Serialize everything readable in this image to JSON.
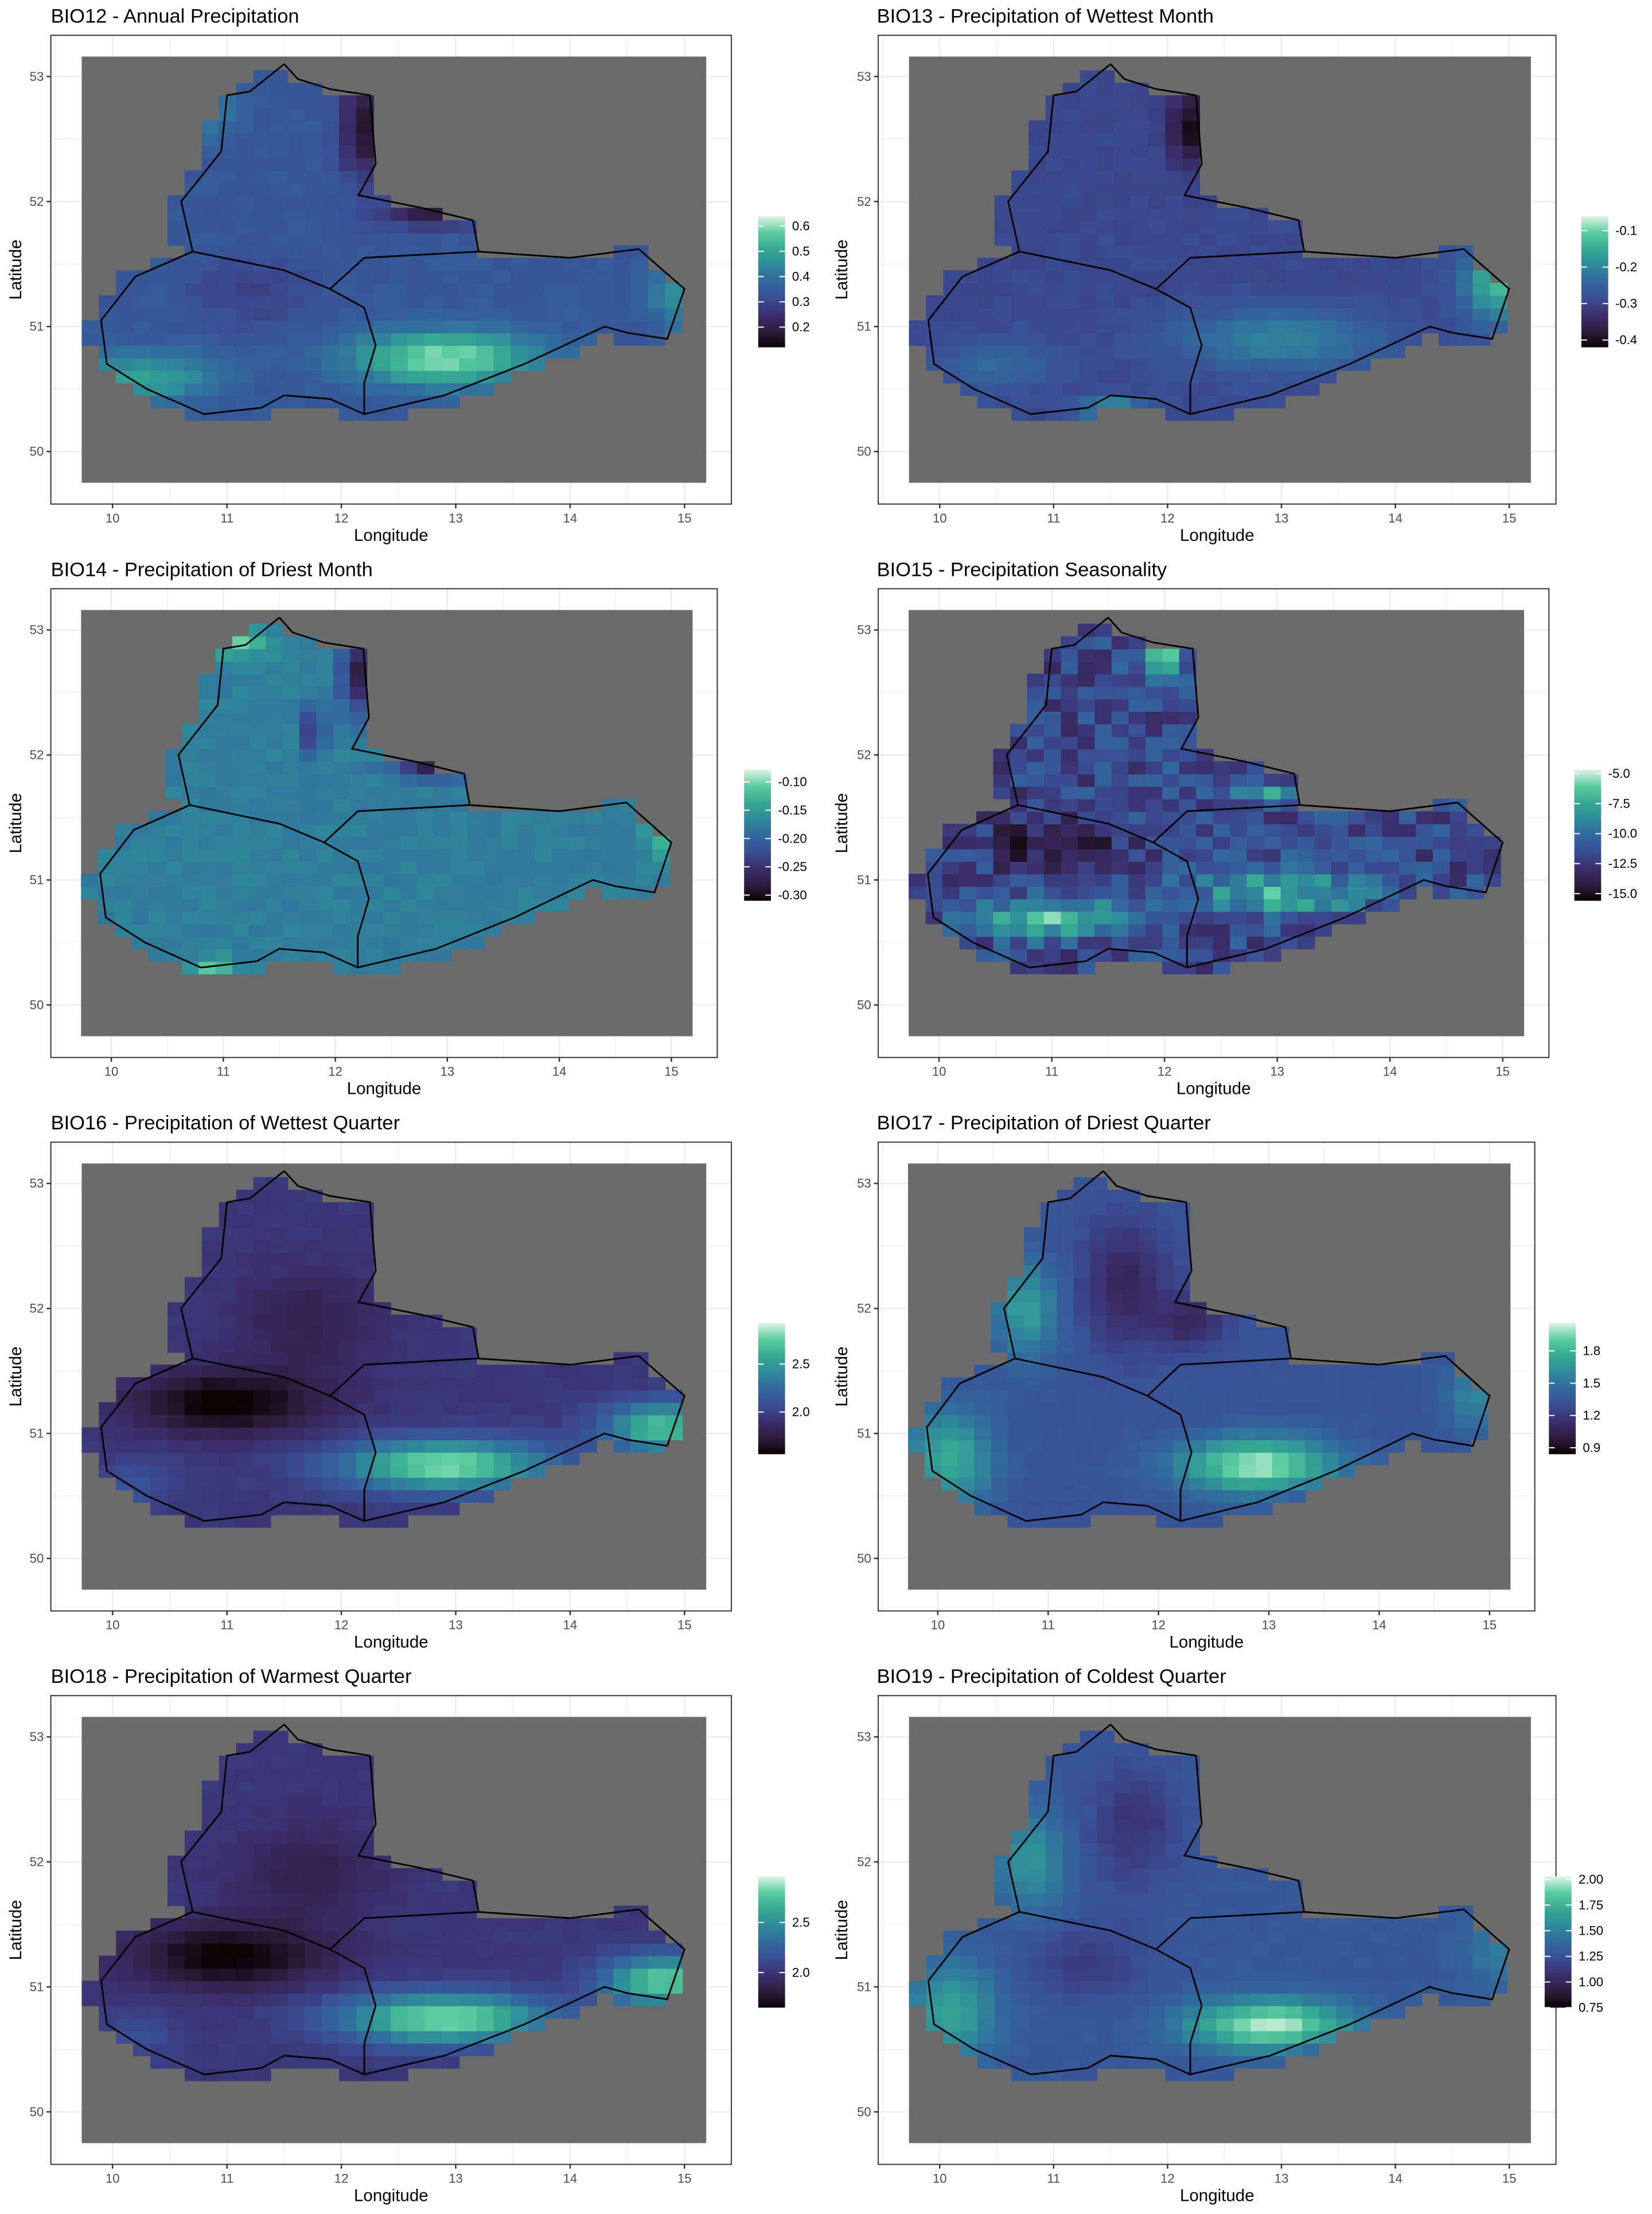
{
  "chart_data": [
    {
      "type": "heatmap",
      "title": "BIO12 - Annual Precipitation",
      "xlabel": "Longitude",
      "ylabel": "Latitude",
      "xticks": [
        "10",
        "11",
        "12",
        "13",
        "14",
        "15"
      ],
      "yticks": [
        "50",
        "51",
        "52",
        "53"
      ],
      "xlim": [
        9.46,
        15.41
      ],
      "ylim": [
        49.58,
        53.33
      ],
      "legend_ticks": [
        "0.2",
        "0.3",
        "0.4",
        "0.5",
        "0.6"
      ],
      "legend_tick_values": [
        0.2,
        0.3,
        0.4,
        0.5,
        0.6
      ],
      "value_range": [
        0.12,
        0.64
      ],
      "legend_position": "right"
    },
    {
      "type": "heatmap",
      "title": "BIO13 - Precipitation of Wettest Month",
      "xlabel": "Longitude",
      "ylabel": "Latitude",
      "xticks": [
        "10",
        "11",
        "12",
        "13",
        "14",
        "15"
      ],
      "yticks": [
        "50",
        "51",
        "52",
        "53"
      ],
      "xlim": [
        9.46,
        15.41
      ],
      "ylim": [
        49.58,
        53.33
      ],
      "legend_ticks": [
        "-0.4",
        "-0.3",
        "-0.2",
        "-0.1"
      ],
      "legend_tick_values": [
        -0.4,
        -0.3,
        -0.2,
        -0.1
      ],
      "value_range": [
        -0.42,
        -0.06
      ],
      "legend_position": "right"
    },
    {
      "type": "heatmap",
      "title": "BIO14 - Precipitation of Driest Month",
      "xlabel": "Longitude",
      "ylabel": "Latitude",
      "xticks": [
        "10",
        "11",
        "12",
        "13",
        "14",
        "15"
      ],
      "yticks": [
        "50",
        "51",
        "52",
        "53"
      ],
      "xlim": [
        9.46,
        15.41
      ],
      "ylim": [
        49.58,
        53.33
      ],
      "legend_ticks": [
        "-0.30",
        "-0.25",
        "-0.20",
        "-0.15",
        "-0.10"
      ],
      "legend_tick_values": [
        -0.3,
        -0.25,
        -0.2,
        -0.15,
        -0.1
      ],
      "value_range": [
        -0.31,
        -0.078
      ],
      "legend_position": "right"
    },
    {
      "type": "heatmap",
      "title": "BIO15 - Precipitation Seasonality",
      "xlabel": "Longitude",
      "ylabel": "Latitude",
      "xticks": [
        "10",
        "11",
        "12",
        "13",
        "14",
        "15"
      ],
      "yticks": [
        "50",
        "51",
        "52",
        "53"
      ],
      "xlim": [
        9.46,
        15.41
      ],
      "ylim": [
        49.58,
        53.33
      ],
      "legend_ticks": [
        "-15.0",
        "-12.5",
        "-10.0",
        "-7.5",
        "-5.0"
      ],
      "legend_tick_values": [
        -15,
        -12.5,
        -10,
        -7.5,
        -5
      ],
      "value_range": [
        -15.6,
        -4.65
      ],
      "legend_position": "right"
    },
    {
      "type": "heatmap",
      "title": "BIO16 - Precipitation of Wettest Quarter",
      "xlabel": "Longitude",
      "ylabel": "Latitude",
      "xticks": [
        "10",
        "11",
        "12",
        "13",
        "14",
        "15"
      ],
      "yticks": [
        "50",
        "51",
        "52",
        "53"
      ],
      "xlim": [
        9.46,
        15.41
      ],
      "ylim": [
        49.58,
        53.33
      ],
      "legend_ticks": [
        "2.0",
        "2.5"
      ],
      "legend_tick_values": [
        2.0,
        2.5
      ],
      "value_range": [
        1.56,
        2.93
      ],
      "legend_position": "right"
    },
    {
      "type": "heatmap",
      "title": "BIO17 - Precipitation of Driest Quarter",
      "xlabel": "Longitude",
      "ylabel": "Latitude",
      "xticks": [
        "10",
        "11",
        "12",
        "13",
        "14",
        "15"
      ],
      "yticks": [
        "50",
        "51",
        "52",
        "53"
      ],
      "xlim": [
        9.46,
        15.41
      ],
      "ylim": [
        49.58,
        53.33
      ],
      "legend_ticks": [
        "0.9",
        "1.2",
        "1.5",
        "1.8"
      ],
      "legend_tick_values": [
        0.9,
        1.2,
        1.5,
        1.8
      ],
      "value_range": [
        0.84,
        2.06
      ],
      "legend_position": "right"
    },
    {
      "type": "heatmap",
      "title": "BIO18 - Precipitation of Warmest Quarter",
      "xlabel": "Longitude",
      "ylabel": "Latitude",
      "xticks": [
        "10",
        "11",
        "12",
        "13",
        "14",
        "15"
      ],
      "yticks": [
        "50",
        "51",
        "52",
        "53"
      ],
      "xlim": [
        9.46,
        15.41
      ],
      "ylim": [
        49.58,
        53.33
      ],
      "legend_ticks": [
        "2.0",
        "2.5"
      ],
      "legend_tick_values": [
        2.0,
        2.5
      ],
      "value_range": [
        1.65,
        2.96
      ],
      "legend_position": "right"
    },
    {
      "type": "heatmap",
      "title": "BIO19 - Precipitation of Coldest Quarter",
      "xlabel": "Longitude",
      "ylabel": "Latitude",
      "xticks": [
        "10",
        "11",
        "12",
        "13",
        "14",
        "15"
      ],
      "yticks": [
        "50",
        "51",
        "52",
        "53"
      ],
      "xlim": [
        9.46,
        15.41
      ],
      "ylim": [
        49.58,
        53.33
      ],
      "legend_ticks": [
        "0.75",
        "1.00",
        "1.25",
        "1.50",
        "1.75",
        "2.00"
      ],
      "legend_tick_values": [
        0.75,
        1.0,
        1.25,
        1.5,
        1.75,
        2.0
      ],
      "value_range": [
        0.75,
        2.03
      ],
      "legend_position": "right"
    }
  ],
  "colors": {
    "background_raster": "#6b6b6b",
    "outline": "#000000",
    "gridline": "#ebebeb",
    "frame": "#333333",
    "scale": [
      "#0b0405",
      "#2d1e3e",
      "#3b2f6e",
      "#3a4f95",
      "#31699d",
      "#2f8a9a",
      "#36aa92",
      "#5bcca0",
      "#def5e5"
    ]
  }
}
